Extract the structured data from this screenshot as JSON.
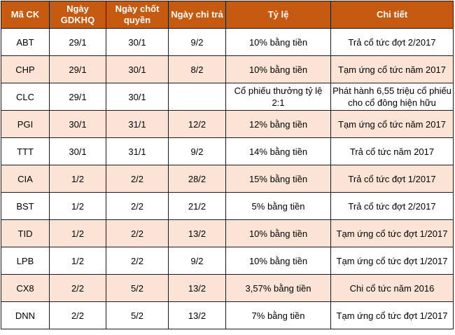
{
  "headers": [
    "Mã CK",
    "Ngày GDKHQ",
    "Ngày chốt quyền",
    "Ngày chi trả",
    "Tỷ lệ",
    "Chi tiết"
  ],
  "rows": [
    [
      "ABT",
      "29/1",
      "30/1",
      "9/2",
      "10% bằng tiền",
      "Trả cổ tức đợt 2/2017"
    ],
    [
      "CHP",
      "29/1",
      "30/1",
      "8/2",
      "10% bằng tiền",
      "Tạm ứng cổ tức năm 2017"
    ],
    [
      "CLC",
      "29/1",
      "30/1",
      "",
      "Cổ phiếu thưởng tỷ lệ 2:1",
      "Phát hành 6,55 triệu cổ phiếu cho cổ đông hiện hữu"
    ],
    [
      "PGI",
      "30/1",
      "31/1",
      "12/2",
      "12% bằng tiền",
      "Tạm ứng cổ tức năm 2017"
    ],
    [
      "TTT",
      "30/1",
      "31/1",
      "9/2",
      "14% bằng tiền",
      "Trả cổ tức năm 2017"
    ],
    [
      "CIA",
      "1/2",
      "2/2",
      "28/2",
      "15% bằng tiền",
      "Trả cổ tức đợt 1/2017"
    ],
    [
      "BST",
      "1/2",
      "2/2",
      "21/2",
      "5% bằng tiền",
      "Trả cổ tức đợt 2/2017"
    ],
    [
      "TID",
      "1/2",
      "2/2",
      "13/2",
      "10% bằng tiền",
      "Tạm ứng cổ tức đợt 1/2017"
    ],
    [
      "LPB",
      "1/2",
      "2/2",
      "9/2",
      "10% bằng tiền",
      "Tạm ứng cổ tức đợt 1/2017"
    ],
    [
      "CX8",
      "2/2",
      "5/2",
      "13/2",
      "3,57% bằng tiền",
      "Chi cổ tức năm 2016"
    ],
    [
      "DNN",
      "2/2",
      "5/2",
      "13/2",
      "7% bằng tiền",
      "Tạm ứng cổ tức đợt 1/2017"
    ]
  ],
  "colors": {
    "header_bg": "#c65a11",
    "header_text": "#ffffff",
    "row_alt_bg": "#fbe4d5",
    "border": "#1a1a1a"
  }
}
